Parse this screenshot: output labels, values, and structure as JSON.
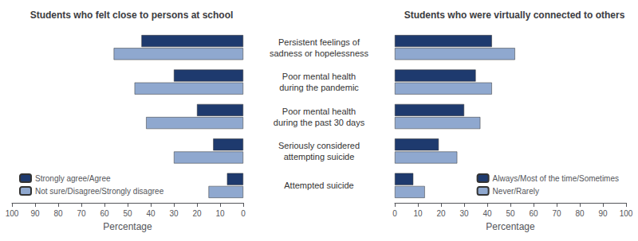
{
  "chart_data": [
    {
      "type": "bar",
      "orientation": "horizontal",
      "title": "Students who felt close to persons at school",
      "categories": [
        "Persistent feelings of\nsadness or hopelessness",
        "Poor mental health\nduring the pandemic",
        "Poor mental health\nduring the past 30 days",
        "Seriously considered\nattempting suicide",
        "Attempted suicide"
      ],
      "series": [
        {
          "name": "Strongly agree/Agree",
          "color": "#1e3a6e",
          "values": [
            44,
            30,
            20,
            13,
            7
          ]
        },
        {
          "name": "Not sure/Disagree/Strongly disagree",
          "color": "#8fa8cf",
          "values": [
            56,
            47,
            42,
            30,
            15
          ]
        }
      ],
      "xlabel": "Percentage",
      "xlim": [
        100,
        0
      ],
      "xticks": [
        0,
        10,
        20,
        30,
        40,
        50,
        60,
        70,
        80,
        90,
        100
      ],
      "legend": "lower left",
      "grid": false
    },
    {
      "type": "bar",
      "orientation": "horizontal",
      "title": "Students who were virtually connected to others",
      "categories": [
        "Persistent feelings of\nsadness or hopelessness",
        "Poor mental health\nduring the pandemic",
        "Poor mental health\nduring the past 30 days",
        "Seriously considered\nattempting suicide",
        "Attempted suicide"
      ],
      "series": [
        {
          "name": "Always/Most of the time/Sometimes",
          "color": "#1e3a6e",
          "values": [
            42,
            35,
            30,
            19,
            8
          ]
        },
        {
          "name": "Never/Rarely",
          "color": "#8fa8cf",
          "values": [
            52,
            42,
            37,
            27,
            13
          ]
        }
      ],
      "xlabel": "Percentage",
      "xlim": [
        0,
        100
      ],
      "xticks": [
        0,
        10,
        20,
        30,
        40,
        50,
        60,
        70,
        80,
        90,
        100
      ],
      "legend": "lower right",
      "grid": false,
      "tick_labels": "x"
    }
  ]
}
